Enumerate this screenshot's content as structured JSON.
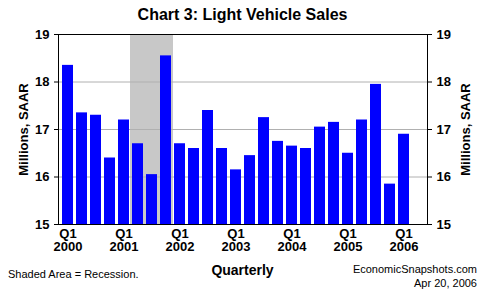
{
  "chart_data": {
    "type": "bar",
    "title": "Chart 3: Light Vehicle Sales",
    "ylabel": "Millions, SAAR",
    "y2label": "Millions, SAAR",
    "xlabel": "Quarterly",
    "note": "Shaded Area = Recession.",
    "source": "EconomicSnapshots.com",
    "date": "Apr 20, 2006",
    "categories": [
      "Q1\n2000",
      null,
      null,
      null,
      "Q1\n2001",
      null,
      null,
      null,
      "Q1\n2002",
      null,
      null,
      null,
      "Q1\n2003",
      null,
      null,
      null,
      "Q1\n2004",
      null,
      null,
      null,
      "Q1\n2005",
      null,
      null,
      null,
      "Q1\n2006",
      null
    ],
    "values": [
      18.35,
      17.35,
      17.3,
      16.4,
      17.2,
      16.7,
      16.05,
      18.55,
      16.7,
      16.6,
      17.4,
      16.6,
      16.15,
      16.45,
      17.25,
      16.75,
      16.65,
      16.6,
      17.05,
      17.15,
      16.5,
      17.2,
      17.95,
      15.85,
      16.9,
      null
    ],
    "recession": [
      false,
      false,
      false,
      false,
      false,
      true,
      true,
      true,
      false,
      false,
      false,
      false,
      false,
      false,
      false,
      false,
      false,
      false,
      false,
      false,
      false,
      false,
      false,
      false,
      false,
      false
    ],
    "color": "#0000ff",
    "ylim": [
      15,
      19
    ],
    "yticks": [
      15,
      16,
      17,
      18,
      19
    ],
    "y2lim": [
      15,
      19
    ],
    "y2ticks": [
      15,
      16,
      17,
      18,
      19
    ],
    "grid": true
  }
}
